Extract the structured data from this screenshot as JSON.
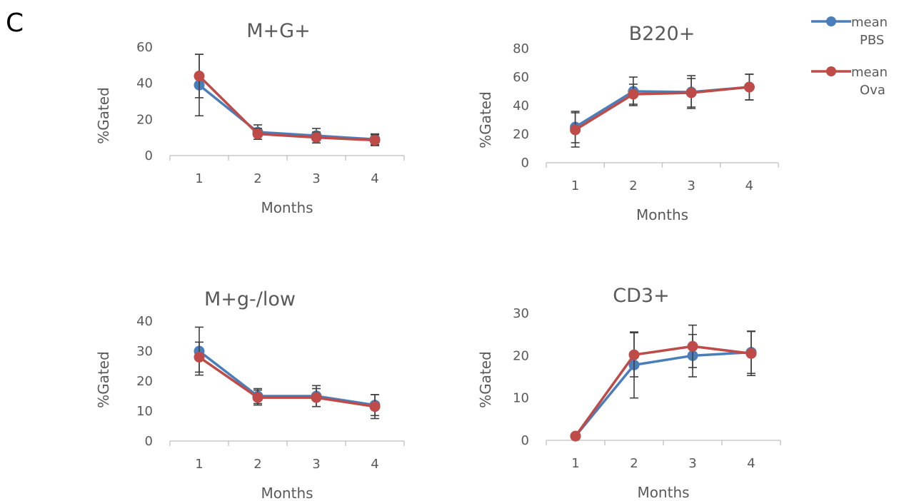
{
  "panel_label": "C",
  "legend": {
    "items": [
      {
        "line1": "mean",
        "line2": "PBS",
        "color": "#4A7EBB"
      },
      {
        "line1": "mean",
        "line2": "Ova",
        "color": "#BE4B48"
      }
    ]
  },
  "chart_data": [
    {
      "type": "line",
      "title": "M+G+",
      "xlabel": "Months",
      "ylabel": "%Gated",
      "categories": [
        "1",
        "2",
        "3",
        "4"
      ],
      "ylim": [
        0,
        60
      ],
      "yticks": [
        "0",
        "20",
        "40",
        "60"
      ],
      "series": [
        {
          "name": "mean PBS",
          "color": "#4A7EBB",
          "values": [
            39,
            13,
            11,
            9
          ],
          "err": [
            17,
            4,
            4,
            3
          ]
        },
        {
          "name": "mean Ova",
          "color": "#BE4B48",
          "values": [
            44,
            12,
            10,
            8.5
          ],
          "err": [
            12,
            3,
            3,
            3
          ]
        }
      ]
    },
    {
      "type": "line",
      "title": "B220+",
      "xlabel": "Months",
      "ylabel": "%Gated",
      "categories": [
        "1",
        "2",
        "3",
        "4"
      ],
      "ylim": [
        0,
        80
      ],
      "yticks": [
        "0",
        "20",
        "40",
        "60",
        "80"
      ],
      "series": [
        {
          "name": "mean PBS",
          "color": "#4A7EBB",
          "values": [
            25,
            50,
            49.5,
            53
          ],
          "err": [
            11,
            10,
            11.5,
            9
          ]
        },
        {
          "name": "mean Ova",
          "color": "#BE4B48",
          "values": [
            23,
            48,
            49,
            53
          ],
          "err": [
            12,
            7,
            10,
            9
          ]
        }
      ]
    },
    {
      "type": "line",
      "title": "M+g-/low",
      "xlabel": "Months",
      "ylabel": "%Gated",
      "categories": [
        "1",
        "2",
        "3",
        "4"
      ],
      "ylim": [
        0,
        40
      ],
      "yticks": [
        "0",
        "10",
        "20",
        "30",
        "40"
      ],
      "series": [
        {
          "name": "mean PBS",
          "color": "#4A7EBB",
          "values": [
            30,
            15,
            15,
            12
          ],
          "err": [
            8,
            2.5,
            3.5,
            3.5
          ]
        },
        {
          "name": "mean Ova",
          "color": "#BE4B48",
          "values": [
            28,
            14.5,
            14.5,
            11.5
          ],
          "err": [
            5,
            2.5,
            3,
            4
          ]
        }
      ]
    },
    {
      "type": "line",
      "title": "CD3+",
      "xlabel": "Months",
      "ylabel": "%Gated",
      "categories": [
        "1",
        "2",
        "3",
        "4"
      ],
      "ylim": [
        0,
        30
      ],
      "yticks": [
        "0",
        "10",
        "20",
        "30"
      ],
      "series": [
        {
          "name": "mean PBS",
          "color": "#4A7EBB",
          "values": [
            1,
            17.8,
            20,
            20.8
          ],
          "err": [
            0,
            7.8,
            5,
            5
          ]
        },
        {
          "name": "mean Ova",
          "color": "#BE4B48",
          "values": [
            1,
            20.2,
            22.2,
            20.5
          ],
          "err": [
            0,
            5.2,
            5,
            5.2
          ]
        }
      ]
    }
  ]
}
